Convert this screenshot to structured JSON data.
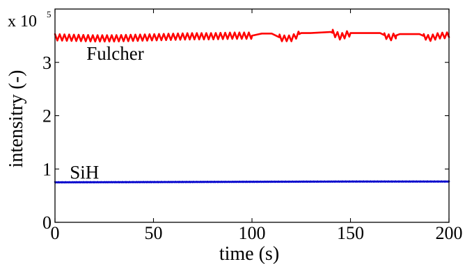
{
  "chart_data": {
    "type": "line",
    "title": "",
    "xlabel": "time (s)",
    "ylabel": "intensitry (-)",
    "xlim": [
      0,
      200
    ],
    "ylim": [
      0,
      4
    ],
    "x_ticks": [
      "0",
      "50",
      "100",
      "150",
      "200"
    ],
    "y_ticks": [
      "0",
      "1",
      "2",
      "3"
    ],
    "y_exponent": {
      "base": "x 10",
      "power": "5"
    },
    "grid": false,
    "series": [
      {
        "name": "Fulcher",
        "color": "#ff0000",
        "x": [
          0,
          10,
          20,
          30,
          40,
          50,
          60,
          70,
          80,
          90,
          100,
          105,
          110,
          115,
          120,
          125,
          130,
          140,
          145,
          150,
          155,
          160,
          165,
          170,
          175,
          180,
          185,
          190,
          195,
          200
        ],
        "y": [
          3.47,
          3.46,
          3.45,
          3.45,
          3.46,
          3.47,
          3.48,
          3.49,
          3.49,
          3.5,
          3.5,
          3.54,
          3.54,
          3.45,
          3.45,
          3.55,
          3.55,
          3.57,
          3.48,
          3.55,
          3.55,
          3.55,
          3.55,
          3.46,
          3.53,
          3.53,
          3.53,
          3.45,
          3.5,
          3.51
        ],
        "oscillation": [
          {
            "from": 0,
            "to": 100,
            "amplitude": 0.06,
            "period": 2.4
          },
          {
            "from": 114,
            "to": 124,
            "amplitude": 0.055,
            "period": 2.4
          },
          {
            "from": 141,
            "to": 150,
            "amplitude": 0.06,
            "period": 2.4
          },
          {
            "from": 167,
            "to": 173,
            "amplitude": 0.055,
            "period": 2.4
          },
          {
            "from": 187,
            "to": 200,
            "amplitude": 0.055,
            "period": 2.4
          }
        ]
      },
      {
        "name": "SiH",
        "color": "#0000cc",
        "x": [
          0,
          50,
          100,
          150,
          200
        ],
        "y": [
          0.75,
          0.755,
          0.76,
          0.765,
          0.765
        ],
        "oscillation": [
          {
            "from": 0,
            "to": 200,
            "amplitude": 0.006,
            "period": 0.9
          }
        ]
      }
    ],
    "annotations": [
      {
        "text": "Fulcher",
        "x": 16,
        "y": 3.05
      },
      {
        "text": "SiH",
        "x": 7.5,
        "y": 0.82
      }
    ]
  }
}
